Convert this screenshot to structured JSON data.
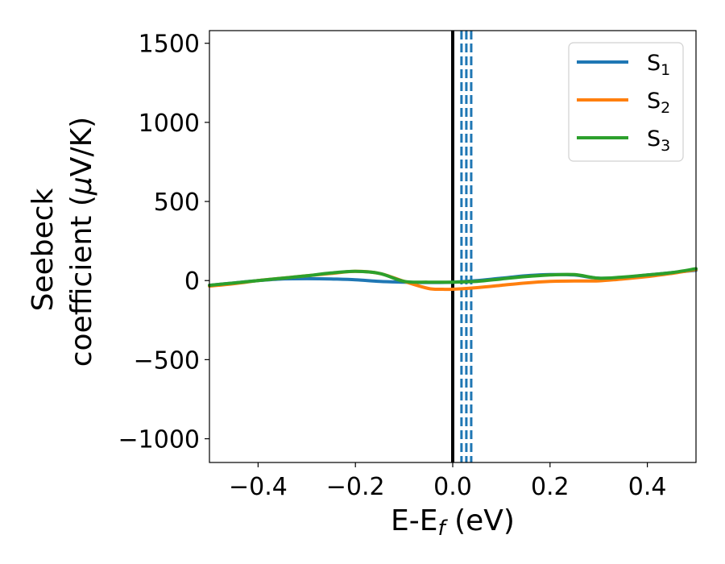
{
  "chart_data": {
    "type": "line",
    "title": "",
    "xlabel": "E-E",
    "xlabel_sub": "f",
    "xlabel_unit": " (eV)",
    "ylabel_line1": "Seebeck",
    "ylabel_line2": "coefficient  (",
    "ylabel_mu": "μ",
    "ylabel_unit": "V/K)",
    "xlim": [
      -0.5,
      0.5
    ],
    "ylim": [
      -1150,
      1580
    ],
    "xticks": [
      -0.4,
      -0.2,
      0.0,
      0.2,
      0.4
    ],
    "xtick_labels": [
      "−0.4",
      "−0.2",
      "0.0",
      "0.2",
      "0.4"
    ],
    "yticks": [
      -1000,
      -500,
      0,
      500,
      1000,
      1500
    ],
    "ytick_labels": [
      "−1000",
      "−500",
      "0",
      "500",
      "1000",
      "1500"
    ],
    "grid": false,
    "legend_position": "top-right",
    "reference_lines": [
      {
        "x": 0.0,
        "style": "solid",
        "color": "#000000"
      },
      {
        "x": 0.018,
        "style": "dashed",
        "color": "#1f77b4"
      },
      {
        "x": 0.028,
        "style": "dashed",
        "color": "#1f77b4"
      },
      {
        "x": 0.038,
        "style": "dashed",
        "color": "#1f77b4"
      }
    ],
    "series": [
      {
        "name": "S",
        "sub": "1",
        "color": "#1f77b4",
        "x": [
          -0.5,
          -0.45,
          -0.4,
          -0.35,
          -0.3,
          -0.25,
          -0.2,
          -0.15,
          -0.1,
          -0.05,
          0.0,
          0.05,
          0.1,
          0.15,
          0.2,
          0.25,
          0.3,
          0.35,
          0.4,
          0.45,
          0.5
        ],
        "y": [
          -30,
          -15,
          0,
          10,
          12,
          10,
          5,
          -5,
          -10,
          -12,
          -10,
          0,
          15,
          30,
          38,
          35,
          15,
          20,
          35,
          50,
          65
        ]
      },
      {
        "name": "S",
        "sub": "2",
        "color": "#ff7f0e",
        "x": [
          -0.5,
          -0.45,
          -0.4,
          -0.35,
          -0.3,
          -0.25,
          -0.2,
          -0.15,
          -0.1,
          -0.05,
          -0.02,
          0.0,
          0.05,
          0.1,
          0.15,
          0.2,
          0.25,
          0.3,
          0.35,
          0.4,
          0.45,
          0.5
        ],
        "y": [
          -35,
          -20,
          0,
          15,
          30,
          45,
          58,
          45,
          -5,
          -50,
          -55,
          -55,
          -45,
          -30,
          -15,
          -5,
          -3,
          -2,
          10,
          25,
          45,
          70
        ]
      },
      {
        "name": "S",
        "sub": "3",
        "color": "#2ca02c",
        "x": [
          -0.5,
          -0.45,
          -0.4,
          -0.35,
          -0.3,
          -0.25,
          -0.2,
          -0.15,
          -0.1,
          -0.05,
          0.0,
          0.05,
          0.1,
          0.15,
          0.2,
          0.25,
          0.3,
          0.35,
          0.4,
          0.45,
          0.5
        ],
        "y": [
          -30,
          -15,
          0,
          15,
          30,
          48,
          58,
          45,
          -5,
          -10,
          -10,
          -5,
          10,
          25,
          35,
          38,
          15,
          22,
          35,
          50,
          75
        ]
      }
    ]
  }
}
